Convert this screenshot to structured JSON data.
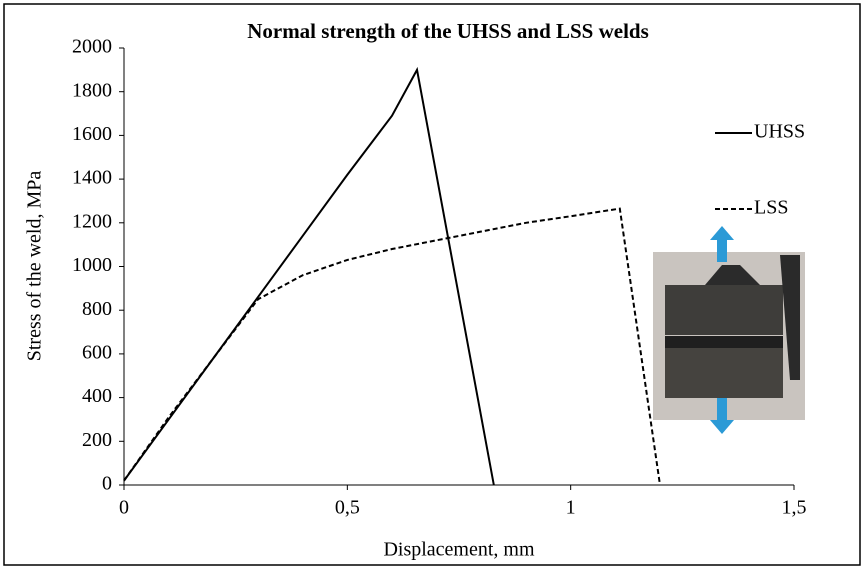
{
  "chart_data": {
    "type": "line",
    "title": "Normal strength of the UHSS and LSS welds",
    "x_label": "Displacement, mm",
    "y_label": "Stress of the weld, MPa",
    "xlim": [
      0,
      1.5
    ],
    "xticks": [
      0,
      {
        "value": 0.5,
        "label": "0,5"
      },
      1,
      {
        "value": 1.5,
        "label": "1,5"
      }
    ],
    "ylim": [
      0,
      2000
    ],
    "yticks": [
      0,
      200,
      400,
      600,
      800,
      1000,
      1200,
      1400,
      1600,
      1800,
      2000
    ],
    "series": [
      {
        "name": "UHSS",
        "color": "#000000",
        "dash": "solid",
        "x": [
          0,
          0.1,
          0.2,
          0.3,
          0.4,
          0.5,
          0.6,
          0.656,
          0.828
        ],
        "values": [
          20,
          300,
          580,
          860,
          1140,
          1420,
          1690,
          1900,
          0
        ]
      },
      {
        "name": "LSS",
        "color": "#000000",
        "dash": "dashed",
        "x": [
          0,
          0.1,
          0.2,
          0.3,
          0.4,
          0.5,
          0.6,
          0.7,
          0.8,
          0.9,
          1.0,
          1.11,
          1.2
        ],
        "values": [
          20,
          310,
          580,
          850,
          960,
          1030,
          1080,
          1120,
          1160,
          1200,
          1230,
          1265,
          0
        ]
      }
    ]
  }
}
